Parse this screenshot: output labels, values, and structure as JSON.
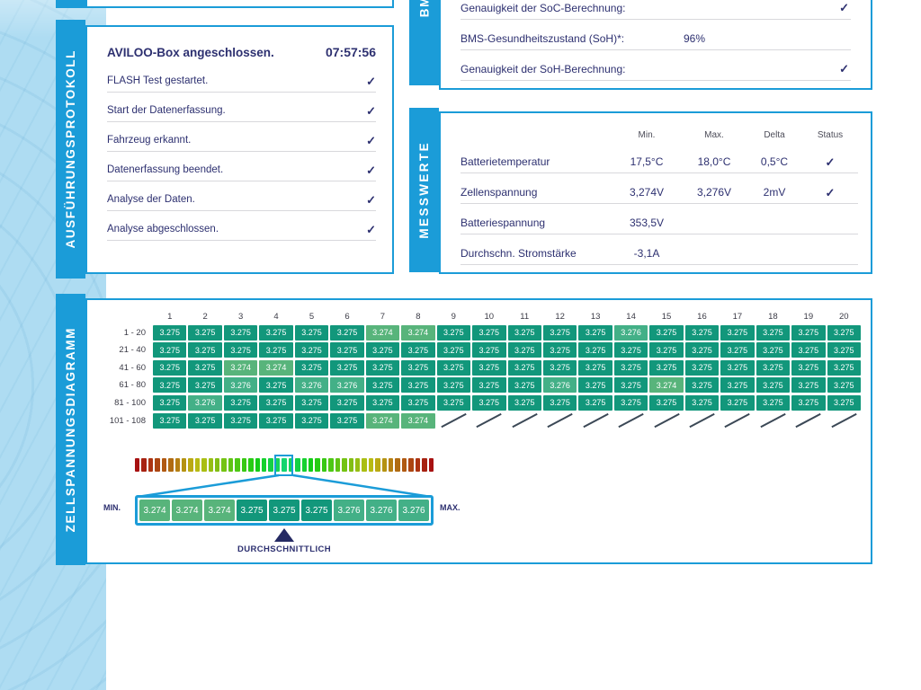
{
  "ui": {
    "check": "✓"
  },
  "colors": {
    "accent": "#1b9cd8",
    "navy": "#2d3070",
    "band": "#aedcf2"
  },
  "protocol": {
    "side_label": "AUSFÜHRUNGSPROTOKOLL",
    "header": {
      "text": "AVILOO-Box angeschlossen.",
      "time": "07:57:56"
    },
    "items": [
      {
        "text": "FLASH Test gestartet."
      },
      {
        "text": "Start der Datenerfassung."
      },
      {
        "text": "Fahrzeug erkannt."
      },
      {
        "text": "Datenerfassung beendet."
      },
      {
        "text": "Analyse der Daten."
      },
      {
        "text": "Analyse abgeschlossen."
      }
    ]
  },
  "bms": {
    "side_label": "BM",
    "rows": [
      {
        "label": "Genauigkeit der SoC-Berechnung:",
        "check": true
      },
      {
        "label": "BMS-Gesundheitszustand (SoH)*:",
        "value": "96%"
      },
      {
        "label": "Genauigkeit der SoH-Berechnung:",
        "check": true
      }
    ]
  },
  "messwerte": {
    "side_label": "MESSWERTE",
    "columns": [
      "Min.",
      "Max.",
      "Delta",
      "Status"
    ],
    "rows": [
      {
        "name": "Batterietemperatur",
        "min": "17,5°C",
        "max": "18,0°C",
        "delta": "0,5°C",
        "check": true
      },
      {
        "name": "Zellenspannung",
        "min": "3,274V",
        "max": "3,276V",
        "delta": "2mV",
        "check": true
      },
      {
        "name": "Batteriespannung",
        "min": "353,5V"
      },
      {
        "name": "Durchschn. Stromstärke",
        "min": "-3,1A"
      }
    ]
  },
  "cell_diagram": {
    "side_label": "ZELLSPANNUNGSDIAGRAMM",
    "min_label": "MIN.",
    "max_label": "MAX.",
    "avg_label": "DURCHSCHNITTLICH"
  },
  "chart_data": {
    "type": "heatmap",
    "title": "ZELLSPANNUNGSDIAGRAMM",
    "unit": "V",
    "columns": [
      "1",
      "2",
      "3",
      "4",
      "5",
      "6",
      "7",
      "8",
      "9",
      "10",
      "11",
      "12",
      "13",
      "14",
      "15",
      "16",
      "17",
      "18",
      "19",
      "20"
    ],
    "row_labels": [
      "1 - 20",
      "21 - 40",
      "41 - 60",
      "61 - 80",
      "81 - 100",
      "101 - 108"
    ],
    "rows": [
      [
        "3.275",
        "3.275",
        "3.275",
        "3.275",
        "3.275",
        "3.275",
        "3.274",
        "3.274",
        "3.275",
        "3.275",
        "3.275",
        "3.275",
        "3.275",
        "3.276",
        "3.275",
        "3.275",
        "3.275",
        "3.275",
        "3.275",
        "3.275"
      ],
      [
        "3.275",
        "3.275",
        "3.275",
        "3.275",
        "3.275",
        "3.275",
        "3.275",
        "3.275",
        "3.275",
        "3.275",
        "3.275",
        "3.275",
        "3.275",
        "3.275",
        "3.275",
        "3.275",
        "3.275",
        "3.275",
        "3.275",
        "3.275"
      ],
      [
        "3.275",
        "3.275",
        "3.274",
        "3.274",
        "3.275",
        "3.275",
        "3.275",
        "3.275",
        "3.275",
        "3.275",
        "3.275",
        "3.275",
        "3.275",
        "3.275",
        "3.275",
        "3.275",
        "3.275",
        "3.275",
        "3.275",
        "3.275"
      ],
      [
        "3.275",
        "3.275",
        "3.276",
        "3.275",
        "3.276",
        "3.276",
        "3.275",
        "3.275",
        "3.275",
        "3.275",
        "3.275",
        "3.276",
        "3.275",
        "3.275",
        "3.274",
        "3.275",
        "3.275",
        "3.275",
        "3.275",
        "3.275"
      ],
      [
        "3.275",
        "3.276",
        "3.275",
        "3.275",
        "3.275",
        "3.275",
        "3.275",
        "3.275",
        "3.275",
        "3.275",
        "3.275",
        "3.275",
        "3.275",
        "3.275",
        "3.275",
        "3.275",
        "3.275",
        "3.275",
        "3.275",
        "3.275"
      ],
      [
        "3.275",
        "3.275",
        "3.275",
        "3.275",
        "3.275",
        "3.275",
        "3.274",
        "3.274"
      ]
    ],
    "value_colors": {
      "3.274": "#58b47b",
      "3.275": "#12977b",
      "3.276": "#43b087"
    },
    "min_value": "3.274",
    "max_value": "3.276",
    "avg_value": "3.275",
    "gradient_bar": {
      "segments": 45,
      "highlight_index": 22
    },
    "zoom_strip": [
      "3.274",
      "3.274",
      "3.274",
      "3.275",
      "3.275",
      "3.275",
      "3.276",
      "3.276",
      "3.276"
    ]
  }
}
